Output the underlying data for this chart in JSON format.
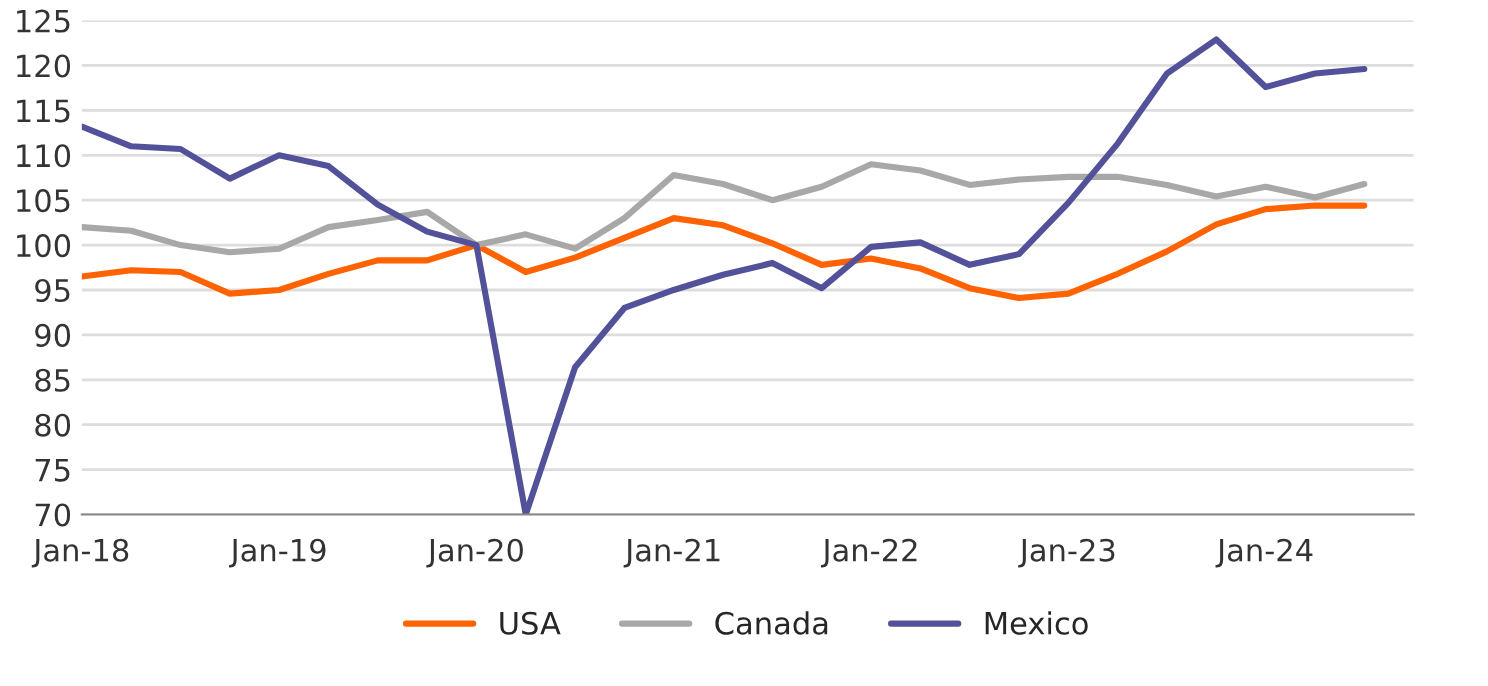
{
  "chart_data": {
    "type": "line",
    "x": [
      "2018-01",
      "2018-04",
      "2018-07",
      "2018-10",
      "2019-01",
      "2019-04",
      "2019-07",
      "2019-10",
      "2020-01",
      "2020-04",
      "2020-07",
      "2020-10",
      "2021-01",
      "2021-04",
      "2021-07",
      "2021-10",
      "2022-01",
      "2022-04",
      "2022-07",
      "2022-10",
      "2023-01",
      "2023-04",
      "2023-07",
      "2023-10",
      "2024-01",
      "2024-04",
      "2024-07"
    ],
    "series": [
      {
        "name": "USA",
        "color": "#ff6200",
        "values": [
          96.5,
          97.2,
          97,
          94.6,
          95,
          96.8,
          98.3,
          98.3,
          100,
          97,
          98.6,
          100.8,
          103,
          102.2,
          100.2,
          97.8,
          98.5,
          97.4,
          95.2,
          94.1,
          94.6,
          96.8,
          99.3,
          102.3,
          104,
          104.4,
          104.4
        ]
      },
      {
        "name": "Canada",
        "color": "#a8a8a8",
        "values": [
          102,
          101.6,
          100,
          99.2,
          99.6,
          102,
          102.8,
          103.7,
          100,
          101.2,
          99.6,
          103,
          107.8,
          106.8,
          105,
          106.5,
          109,
          108.3,
          106.7,
          107.3,
          107.6,
          107.6,
          106.7,
          105.4,
          106.5,
          105.3,
          106.8
        ]
      },
      {
        "name": "Mexico",
        "color": "#525199",
        "values": [
          113.2,
          111,
          110.7,
          107.4,
          110,
          108.8,
          104.5,
          101.5,
          100,
          70,
          86.4,
          93,
          95,
          96.7,
          98,
          95.2,
          99.8,
          100.3,
          97.8,
          99,
          104.7,
          111.3,
          119.1,
          122.9,
          117.6,
          119.1,
          119.6
        ]
      }
    ],
    "xlim": [
      "2018-01",
      "2024-10"
    ],
    "xticks": [
      {
        "value": "2018-01",
        "label": "Jan-18"
      },
      {
        "value": "2019-01",
        "label": "Jan-19"
      },
      {
        "value": "2020-01",
        "label": "Jan-20"
      },
      {
        "value": "2021-01",
        "label": "Jan-21"
      },
      {
        "value": "2022-01",
        "label": "Jan-22"
      },
      {
        "value": "2023-01",
        "label": "Jan-23"
      },
      {
        "value": "2024-01",
        "label": "Jan-24"
      }
    ],
    "ylim": [
      70,
      125
    ],
    "yticks": [
      70,
      75,
      80,
      85,
      90,
      95,
      100,
      105,
      110,
      115,
      120,
      125
    ],
    "grid": "y",
    "legend": "bottom",
    "marker": "none",
    "line_style": "solid"
  }
}
